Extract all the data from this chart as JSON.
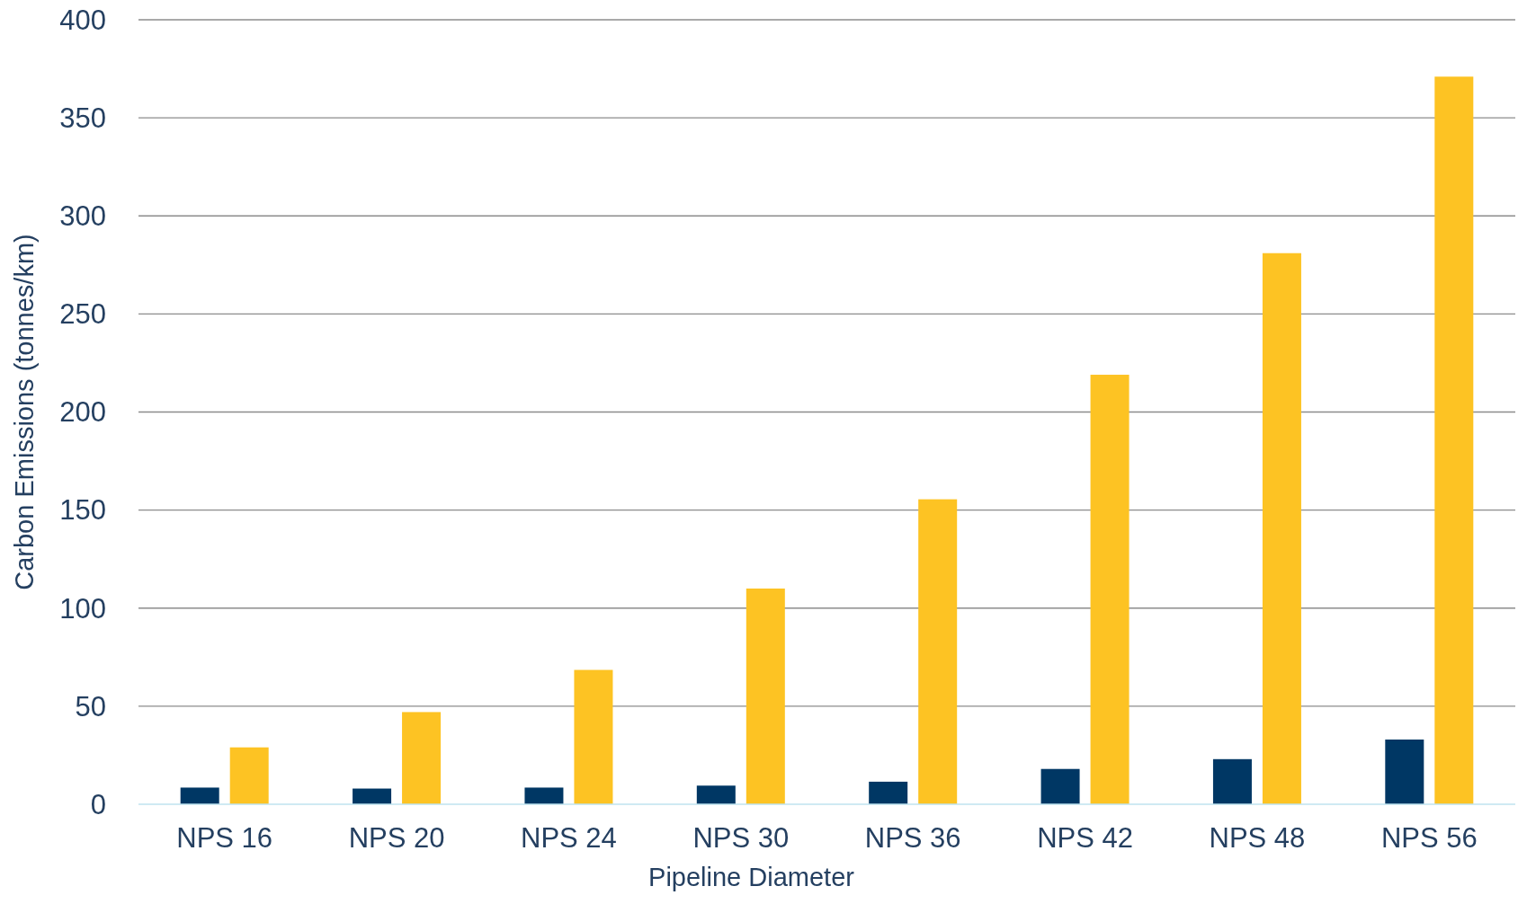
{
  "chart_data": {
    "type": "bar",
    "xlabel": "Pipeline Diameter",
    "ylabel": "Carbon Emissions (tonnes/km)",
    "categories": [
      "NPS 16",
      "NPS 20",
      "NPS 24",
      "NPS 30",
      "NPS 36",
      "NPS 42",
      "NPS 48",
      "NPS 56"
    ],
    "series": [
      {
        "color": "#003764",
        "values": [
          8.5,
          8,
          8.5,
          9.5,
          11.5,
          18,
          23,
          33
        ]
      },
      {
        "color": "#fdc323",
        "values": [
          29,
          47,
          68.5,
          110,
          155.5,
          219,
          281,
          371
        ]
      }
    ],
    "ylim": [
      0,
      400
    ],
    "yticks": [
      0,
      50,
      100,
      150,
      200,
      250,
      300,
      350,
      400
    ],
    "grid": "y"
  }
}
